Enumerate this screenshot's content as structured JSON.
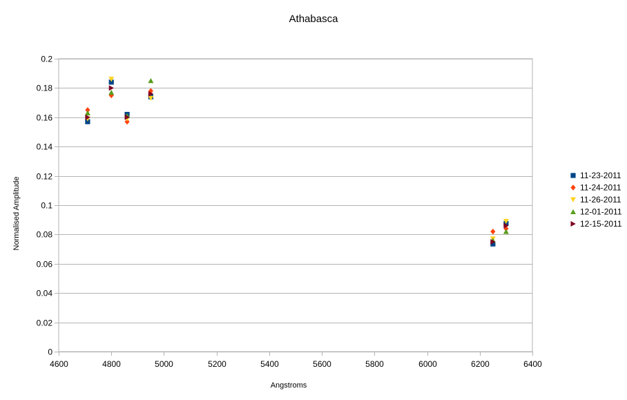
{
  "chart_data": {
    "type": "scatter",
    "title": "Athabasca",
    "xlabel": "Angstroms",
    "ylabel": "Normalised Amplitude",
    "xlim": [
      4600,
      6400
    ],
    "ylim": [
      0,
      0.2
    ],
    "xticks": [
      4600,
      4800,
      5000,
      5200,
      5400,
      5600,
      5800,
      6000,
      6200,
      6400
    ],
    "yticks": [
      0,
      0.02,
      0.04,
      0.06,
      0.08,
      0.1,
      0.12,
      0.14,
      0.16,
      0.18,
      0.2
    ],
    "xtick_labels": [
      "4600",
      "4800",
      "5000",
      "5200",
      "5400",
      "5600",
      "5800",
      "6000",
      "6200",
      "6400"
    ],
    "ytick_labels": [
      "0",
      "0.02",
      "0.04",
      "0.06",
      "0.08",
      "0.1",
      "0.12",
      "0.14",
      "0.16",
      "0.18",
      "0.2"
    ],
    "grid": "horizontal",
    "legend_position": "right",
    "series": [
      {
        "name": "11-23-2011",
        "color": "#004586",
        "marker": "square",
        "x": [
          4710,
          4800,
          4860,
          4950,
          6250,
          6300
        ],
        "y": [
          0.157,
          0.184,
          0.162,
          0.174,
          0.0735,
          0.0875
        ]
      },
      {
        "name": "11-24-2011",
        "color": "#ff420e",
        "marker": "diamond",
        "x": [
          4710,
          4800,
          4860,
          4950,
          6250,
          6300
        ],
        "y": [
          0.165,
          0.175,
          0.157,
          0.178,
          0.082,
          0.084
        ]
      },
      {
        "name": "11-26-2011",
        "color": "#ffd320",
        "marker": "triangle-down",
        "x": [
          4710,
          4800,
          4860,
          4950,
          6250,
          6300
        ],
        "y": [
          0.159,
          0.186,
          0.159,
          0.173,
          0.077,
          0.089
        ]
      },
      {
        "name": "12-01-2011",
        "color": "#579d1c",
        "marker": "triangle-up",
        "x": [
          4710,
          4800,
          4860,
          4950,
          6250,
          6300
        ],
        "y": [
          0.163,
          0.177,
          0.161,
          0.185,
          0.076,
          0.082
        ]
      },
      {
        "name": "12-15-2011",
        "color": "#7e0021",
        "marker": "triangle-right",
        "x": [
          4710,
          4800,
          4860,
          4950,
          6250,
          6300
        ],
        "y": [
          0.16,
          0.18,
          0.16,
          0.176,
          0.075,
          0.086
        ]
      }
    ]
  }
}
